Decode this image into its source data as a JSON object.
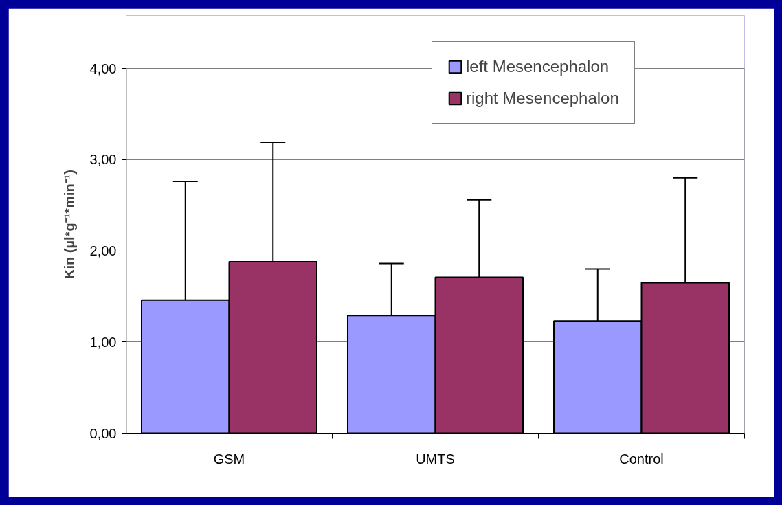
{
  "chart_data": {
    "type": "bar",
    "ylabel": "Kin (µl*g⁻¹*min⁻¹)",
    "categories": [
      "GSM",
      "UMTS",
      "Control"
    ],
    "series": [
      {
        "name": "left Mesencephalon",
        "color": "#9999ff",
        "values": [
          1.46,
          1.29,
          1.23
        ],
        "errors": [
          [
            1.46,
            2.76
          ],
          [
            1.29,
            1.86
          ],
          [
            1.23,
            1.8
          ]
        ]
      },
      {
        "name": "right Mesencephalon",
        "color": "#993366",
        "values": [
          1.88,
          1.71,
          1.65
        ],
        "errors": [
          [
            1.88,
            3.19
          ],
          [
            1.71,
            2.56
          ],
          [
            1.65,
            2.8
          ]
        ]
      }
    ],
    "ylim": [
      0,
      4
    ],
    "yticks": [
      {
        "value": 0,
        "label": "0,00"
      },
      {
        "value": 1,
        "label": "1,00"
      },
      {
        "value": 2,
        "label": "2,00"
      },
      {
        "value": 3,
        "label": "3,00"
      },
      {
        "value": 4,
        "label": "4,00"
      }
    ],
    "grid": "y",
    "legend": "top right"
  }
}
